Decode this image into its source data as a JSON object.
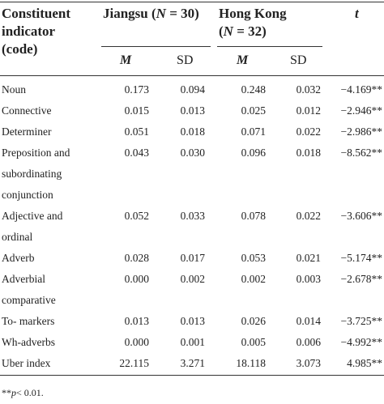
{
  "table": {
    "header": {
      "col1": [
        "Constituent",
        "indicator",
        "(code)"
      ],
      "jiangsu": {
        "prefix": "Jiangsu (",
        "n_letter": "N",
        "rest": " = 30)"
      },
      "hongkong": {
        "line1": "Hong Kong",
        "n_open": "(",
        "n_letter": "N",
        "rest": " = 32)"
      },
      "t": "t",
      "m": "M",
      "sd": "SD"
    },
    "rows": [
      {
        "label": [
          "Noun"
        ],
        "jm": "0.173",
        "jsd": "0.094",
        "hm": "0.248",
        "hsd": "0.032",
        "t": "−4.169**"
      },
      {
        "label": [
          "Connective"
        ],
        "jm": "0.015",
        "jsd": "0.013",
        "hm": "0.025",
        "hsd": "0.012",
        "t": "−2.946**"
      },
      {
        "label": [
          "Determiner"
        ],
        "jm": "0.051",
        "jsd": "0.018",
        "hm": "0.071",
        "hsd": "0.022",
        "t": "−2.986**"
      },
      {
        "label": [
          "Preposition and",
          "subordinating",
          "conjunction"
        ],
        "jm": "0.043",
        "jsd": "0.030",
        "hm": "0.096",
        "hsd": "0.018",
        "t": "−8.562**"
      },
      {
        "label": [
          "Adjective and",
          "ordinal"
        ],
        "jm": "0.052",
        "jsd": "0.033",
        "hm": "0.078",
        "hsd": "0.022",
        "t": "−3.606**"
      },
      {
        "label": [
          "Adverb"
        ],
        "jm": "0.028",
        "jsd": "0.017",
        "hm": "0.053",
        "hsd": "0.021",
        "t": "−5.174**"
      },
      {
        "label": [
          "Adverbial",
          "comparative"
        ],
        "jm": "0.000",
        "jsd": "0.002",
        "hm": "0.002",
        "hsd": "0.003",
        "t": "−2.678**"
      },
      {
        "label": [
          "To- markers"
        ],
        "jm": "0.013",
        "jsd": "0.013",
        "hm": "0.026",
        "hsd": "0.014",
        "t": "−3.725**"
      },
      {
        "label": [
          "Wh-adverbs"
        ],
        "jm": "0.000",
        "jsd": "0.001",
        "hm": "0.005",
        "hsd": "0.006",
        "t": "−4.992**"
      },
      {
        "label": [
          "Uber index"
        ],
        "jm": "22.115",
        "jsd": "3.271",
        "hm": "18.118",
        "hsd": "3.073",
        "t": "4.985**"
      }
    ],
    "footnote": {
      "stars": "**",
      "p": "p",
      "rest": "< 0.01."
    }
  }
}
